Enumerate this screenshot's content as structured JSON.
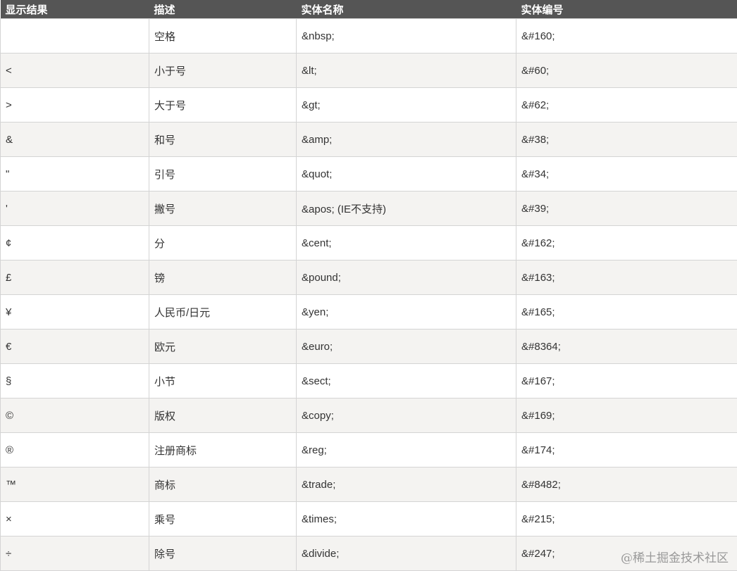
{
  "table": {
    "headers": [
      "显示结果",
      "描述",
      "实体名称",
      "实体编号"
    ],
    "rows": [
      [
        " ",
        "空格",
        "&nbsp;",
        "&#160;"
      ],
      [
        "<",
        "小于号",
        "&lt;",
        "&#60;"
      ],
      [
        ">",
        "大于号",
        "&gt;",
        "&#62;"
      ],
      [
        "&",
        "和号",
        "&amp;",
        "&#38;"
      ],
      [
        "\"",
        "引号",
        "&quot;",
        "&#34;"
      ],
      [
        "'",
        "撇号",
        "&apos; (IE不支持)",
        "&#39;"
      ],
      [
        "¢",
        "分",
        "&cent;",
        "&#162;"
      ],
      [
        "£",
        "镑",
        "&pound;",
        "&#163;"
      ],
      [
        "¥",
        "人民币/日元",
        "&yen;",
        "&#165;"
      ],
      [
        "€",
        "欧元",
        "&euro;",
        "&#8364;"
      ],
      [
        "§",
        "小节",
        "&sect;",
        "&#167;"
      ],
      [
        "©",
        "版权",
        "&copy;",
        "&#169;"
      ],
      [
        "®",
        "注册商标",
        "&reg;",
        "&#174;"
      ],
      [
        "™",
        "商标",
        "&trade;",
        "&#8482;"
      ],
      [
        "×",
        "乘号",
        "&times;",
        "&#215;"
      ],
      [
        "÷",
        "除号",
        "&divide;",
        "&#247;"
      ]
    ]
  },
  "watermark": "@稀土掘金技术社区",
  "colors": {
    "header_bg": "#555555",
    "alt_row": "#f4f3f1",
    "border": "#d4d4d4"
  }
}
